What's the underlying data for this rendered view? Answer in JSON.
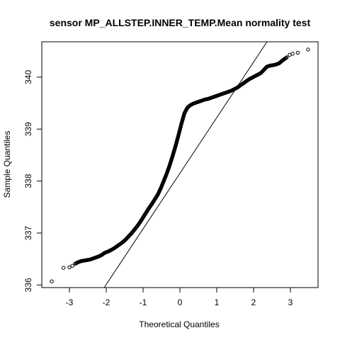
{
  "chart_data": {
    "type": "scatter",
    "title": "sensor MP_ALLSTEP.INNER_TEMP.Mean normality test",
    "xlabel": "Theoretical Quantiles",
    "ylabel": "Sample Quantiles",
    "xlim": [
      -3.75,
      3.75
    ],
    "ylim": [
      335.95,
      340.68
    ],
    "x_ticks": [
      -3,
      -2,
      -1,
      0,
      1,
      2,
      3
    ],
    "y_ticks": [
      336,
      337,
      338,
      339,
      340
    ],
    "grid": false,
    "legend": "none",
    "reference_line": {
      "slope": 1.07,
      "intercept": 338.15
    },
    "series": [
      {
        "points": [
          [
            -3.48,
            336.07
          ],
          [
            -3.16,
            336.33
          ],
          [
            -3.0,
            336.34
          ],
          [
            -2.92,
            336.37
          ],
          [
            -2.84,
            336.41
          ],
          [
            -2.76,
            336.44
          ],
          [
            -2.68,
            336.46
          ],
          [
            -2.6,
            336.47
          ],
          [
            -2.52,
            336.48
          ],
          [
            -2.44,
            336.49
          ],
          [
            -2.36,
            336.51
          ],
          [
            -2.28,
            336.53
          ],
          [
            -2.2,
            336.55
          ],
          [
            -2.12,
            336.58
          ],
          [
            -2.04,
            336.62
          ],
          [
            -1.96,
            336.64
          ],
          [
            -1.88,
            336.67
          ],
          [
            -1.8,
            336.7
          ],
          [
            -1.72,
            336.74
          ],
          [
            -1.64,
            336.78
          ],
          [
            -1.56,
            336.82
          ],
          [
            -1.48,
            336.87
          ],
          [
            -1.4,
            336.93
          ],
          [
            -1.32,
            336.99
          ],
          [
            -1.24,
            337.06
          ],
          [
            -1.16,
            337.13
          ],
          [
            -1.08,
            337.21
          ],
          [
            -1.0,
            337.3
          ],
          [
            -0.92,
            337.39
          ],
          [
            -0.84,
            337.48
          ],
          [
            -0.76,
            337.56
          ],
          [
            -0.68,
            337.65
          ],
          [
            -0.6,
            337.74
          ],
          [
            -0.52,
            337.86
          ],
          [
            -0.44,
            338.0
          ],
          [
            -0.36,
            338.14
          ],
          [
            -0.28,
            338.3
          ],
          [
            -0.2,
            338.48
          ],
          [
            -0.12,
            338.67
          ],
          [
            -0.04,
            338.88
          ],
          [
            0.04,
            339.1
          ],
          [
            0.12,
            339.3
          ],
          [
            0.2,
            339.41
          ],
          [
            0.28,
            339.46
          ],
          [
            0.36,
            339.49
          ],
          [
            0.44,
            339.51
          ],
          [
            0.52,
            339.53
          ],
          [
            0.6,
            339.55
          ],
          [
            0.68,
            339.57
          ],
          [
            0.76,
            339.58
          ],
          [
            0.84,
            339.6
          ],
          [
            0.92,
            339.62
          ],
          [
            1.0,
            339.64
          ],
          [
            1.08,
            339.66
          ],
          [
            1.16,
            339.68
          ],
          [
            1.24,
            339.7
          ],
          [
            1.32,
            339.72
          ],
          [
            1.4,
            339.74
          ],
          [
            1.48,
            339.77
          ],
          [
            1.56,
            339.8
          ],
          [
            1.64,
            339.84
          ],
          [
            1.72,
            339.88
          ],
          [
            1.8,
            339.92
          ],
          [
            1.88,
            339.96
          ],
          [
            1.96,
            339.99
          ],
          [
            2.04,
            340.02
          ],
          [
            2.12,
            340.05
          ],
          [
            2.2,
            340.08
          ],
          [
            2.28,
            340.14
          ],
          [
            2.36,
            340.2
          ],
          [
            2.44,
            340.22
          ],
          [
            2.52,
            340.23
          ],
          [
            2.6,
            340.24
          ],
          [
            2.7,
            340.27
          ],
          [
            2.8,
            340.33
          ],
          [
            2.9,
            340.38
          ],
          [
            2.98,
            340.43
          ],
          [
            3.06,
            340.45
          ],
          [
            3.2,
            340.47
          ],
          [
            3.48,
            340.53
          ]
        ]
      }
    ]
  }
}
